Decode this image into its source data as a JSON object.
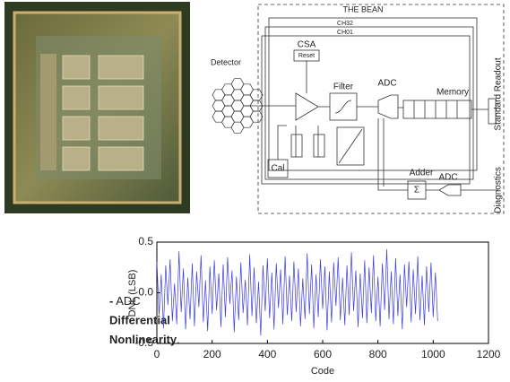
{
  "diagram": {
    "title": "THE BEAN",
    "channel_last": "CH32",
    "channel_first": "CH01",
    "detector": "Detector",
    "csa": "CSA",
    "reset": "Reset",
    "filter": "Filter",
    "adc": "ADC",
    "memory": "Memory",
    "cal": "Cal",
    "adder": "Adder",
    "adder_symbol": "Σ",
    "adc_diagnostics": "ADC",
    "standard_readout": "Standard Readout",
    "diagnostics": "Diagnostics"
  },
  "caption": {
    "dash": "-",
    "prefix": " ADC",
    "line1": "Differential",
    "line2": "Nonlinearity",
    "end": "."
  },
  "chart_data": {
    "type": "line",
    "x_label": "Code",
    "y_label": "DNL (LSB)",
    "color": "#3a3ae0",
    "xlim": [
      0,
      1200
    ],
    "ylim": [
      -0.5,
      0.5
    ],
    "xticks": [
      0,
      200,
      400,
      600,
      800,
      1000,
      1200
    ],
    "yticks": [
      -0.5,
      {
        "value": 0,
        "label": "0.0"
      },
      0.5
    ],
    "x": [
      0,
      8,
      16,
      24,
      32,
      40,
      48,
      56,
      64,
      72,
      80,
      88,
      96,
      104,
      112,
      120,
      128,
      136,
      144,
      152,
      160,
      168,
      176,
      184,
      192,
      200,
      208,
      216,
      224,
      232,
      240,
      248,
      256,
      264,
      272,
      280,
      288,
      296,
      304,
      312,
      320,
      328,
      336,
      344,
      352,
      360,
      368,
      376,
      384,
      392,
      400,
      408,
      416,
      424,
      432,
      440,
      448,
      456,
      464,
      472,
      480,
      488,
      496,
      504,
      512,
      520,
      528,
      536,
      544,
      552,
      560,
      568,
      576,
      584,
      592,
      600,
      608,
      616,
      624,
      632,
      640,
      648,
      656,
      664,
      672,
      680,
      688,
      696,
      704,
      712,
      720,
      728,
      736,
      744,
      752,
      760,
      768,
      776,
      784,
      792,
      800,
      808,
      816,
      824,
      832,
      840,
      848,
      856,
      864,
      872,
      880,
      888,
      896,
      904,
      912,
      920,
      928,
      936,
      944,
      952,
      960,
      968,
      976,
      984,
      992,
      1000,
      1008,
      1016
    ],
    "values": [
      0.31,
      -0.22,
      0.18,
      -0.35,
      0.27,
      -0.12,
      0.33,
      -0.28,
      0.09,
      -0.31,
      0.41,
      -0.19,
      0.24,
      -0.36,
      0.15,
      -0.26,
      0.29,
      -0.33,
      0.21,
      -0.14,
      0.37,
      -0.29,
      0.12,
      -0.38,
      0.26,
      -0.21,
      0.32,
      -0.17,
      0.19,
      -0.34,
      0.28,
      -0.24,
      0.35,
      -0.11,
      0.22,
      -0.39,
      0.16,
      -0.27,
      0.3,
      -0.2,
      0.13,
      -0.32,
      0.38,
      -0.23,
      0.25,
      -0.3,
      0.11,
      -0.42,
      0.27,
      -0.18,
      0.34,
      -0.25,
      0.2,
      -0.36,
      0.29,
      -0.15,
      0.23,
      -0.31,
      0.36,
      -0.22,
      0.17,
      -0.28,
      0.31,
      -0.19,
      0.24,
      -0.33,
      0.14,
      -0.26,
      0.39,
      -0.21,
      0.28,
      -0.35,
      0.18,
      -0.24,
      0.33,
      -0.16,
      0.26,
      -0.37,
      0.21,
      -0.29,
      0.3,
      -0.13,
      0.35,
      -0.27,
      0.15,
      -0.32,
      0.27,
      -0.22,
      0.4,
      -0.18,
      0.22,
      -0.34,
      0.19,
      -0.25,
      0.32,
      -0.3,
      0.25,
      -0.2,
      0.37,
      -0.28,
      0.16,
      -0.33,
      0.29,
      -0.17,
      0.43,
      -0.26,
      0.21,
      -0.31,
      0.34,
      -0.23,
      0.18,
      -0.36,
      0.28,
      -0.14,
      0.31,
      -0.29,
      0.23,
      -0.21,
      0.36,
      -0.27,
      0.17,
      -0.32,
      0.26,
      -0.19,
      0.3,
      -0.24,
      0.2,
      -0.28
    ]
  }
}
